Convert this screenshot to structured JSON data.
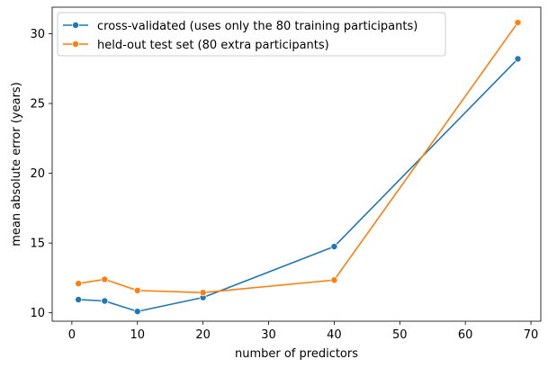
{
  "chart_data": {
    "type": "line",
    "xlabel": "number of predictors",
    "ylabel": "mean absolute error (years)",
    "xlim": [
      -3,
      71.5
    ],
    "ylim": [
      9.4,
      31.9
    ],
    "xticks": [
      0,
      10,
      20,
      30,
      40,
      50,
      60,
      70
    ],
    "yticks": [
      10,
      15,
      20,
      25,
      30
    ],
    "grid": false,
    "legend_position": "top-left",
    "series": [
      {
        "name": "cross-validated (uses only the 80 training participants)",
        "color": "#1f77b4",
        "x": [
          1,
          5,
          10,
          20,
          40,
          68
        ],
        "y": [
          10.95,
          10.85,
          10.1,
          11.1,
          14.75,
          28.2
        ]
      },
      {
        "name": "held-out test set (80 extra participants)",
        "color": "#ff7f0e",
        "x": [
          1,
          5,
          10,
          20,
          40,
          68
        ],
        "y": [
          12.1,
          12.4,
          11.6,
          11.45,
          12.35,
          30.8
        ]
      }
    ]
  }
}
